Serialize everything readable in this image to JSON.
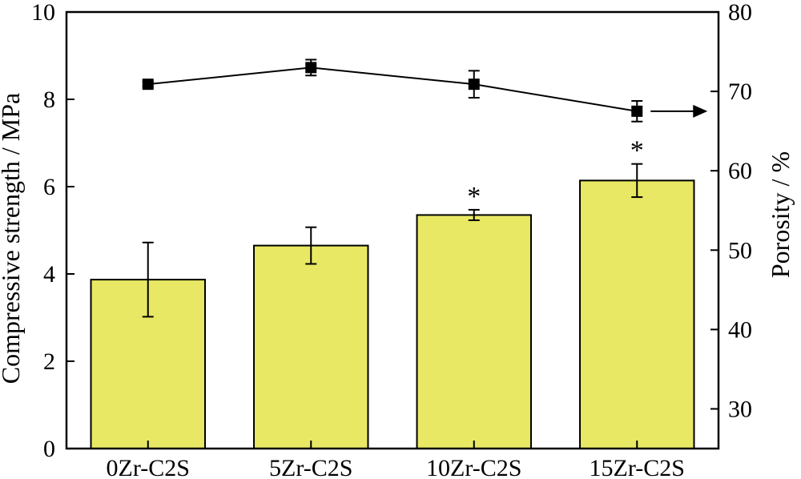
{
  "chart_data": {
    "type": "bar",
    "categories": [
      "0Zr-C2S",
      "5Zr-C2S",
      "10Zr-C2S",
      "15Zr-C2S"
    ],
    "left_axis": {
      "label": "Compressive strength / MPa",
      "ylim": [
        0,
        10
      ],
      "ticks": [
        0,
        2,
        4,
        6,
        8,
        10
      ]
    },
    "right_axis": {
      "label": "Porosity / %",
      "ylim": [
        25,
        80
      ],
      "ticks": [
        30,
        40,
        50,
        60,
        70,
        80
      ]
    },
    "series": [
      {
        "chart": "bar",
        "axis": "left",
        "values": [
          3.87,
          4.65,
          5.35,
          6.14
        ],
        "errors": [
          0.85,
          0.42,
          0.12,
          0.38
        ],
        "color": "#e8e864"
      },
      {
        "chart": "line",
        "axis": "right",
        "marker": "square",
        "values": [
          70.9,
          73.0,
          70.9,
          67.5
        ],
        "errors": [
          0.3,
          1.0,
          1.7,
          1.3
        ],
        "color": "#000000"
      }
    ],
    "annotations": [
      {
        "category": "10Zr-C2S",
        "text": "*"
      },
      {
        "category": "15Zr-C2S",
        "text": "*"
      }
    ],
    "arrow": {
      "points_to": "right",
      "series": 1
    },
    "grid": false,
    "legend": "none"
  }
}
